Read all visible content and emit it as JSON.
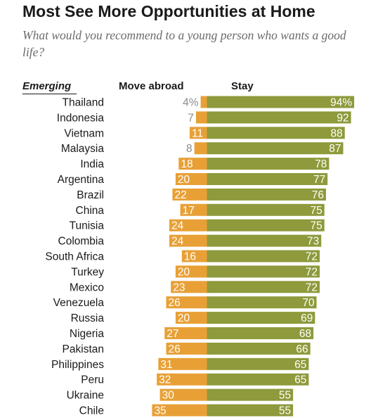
{
  "header": {
    "title": "Most See More Opportunities at Home",
    "subtitle": "What would you recommend to a young person who wants a good life?"
  },
  "colors": {
    "move_abroad": "#e8a036",
    "stay": "#8e9a3b",
    "label_on_bar": "#ffffff",
    "label_outside": "#8c8c8c"
  },
  "chart_data": {
    "type": "bar",
    "orientation": "diverging-horizontal",
    "group_label": "Emerging",
    "categories": [
      "Thailand",
      "Indonesia",
      "Vietnam",
      "Malaysia",
      "India",
      "Argentina",
      "Brazil",
      "China",
      "Tunisia",
      "Colombia",
      "South Africa",
      "Turkey",
      "Mexico",
      "Venezuela",
      "Russia",
      "Nigeria",
      "Pakistan",
      "Philippines",
      "Peru",
      "Ukraine",
      "Chile"
    ],
    "series": [
      {
        "name": "Move abroad",
        "values": [
          4,
          7,
          11,
          8,
          18,
          20,
          22,
          17,
          24,
          24,
          16,
          20,
          23,
          26,
          20,
          27,
          26,
          31,
          32,
          30,
          35
        ],
        "labels": [
          "4%",
          "7",
          "11",
          "8",
          "18",
          "20",
          "22",
          "17",
          "24",
          "24",
          "16",
          "20",
          "23",
          "26",
          "20",
          "27",
          "26",
          "31",
          "32",
          "30",
          "35"
        ]
      },
      {
        "name": "Stay",
        "values": [
          94,
          92,
          88,
          87,
          78,
          77,
          76,
          75,
          75,
          73,
          72,
          72,
          72,
          70,
          69,
          68,
          66,
          65,
          65,
          55,
          55
        ],
        "labels": [
          "94%",
          "92",
          "88",
          "87",
          "78",
          "77",
          "76",
          "75",
          "75",
          "73",
          "72",
          "72",
          "72",
          "70",
          "69",
          "68",
          "66",
          "65",
          "65",
          "55",
          "55"
        ]
      }
    ],
    "unit": "%"
  }
}
